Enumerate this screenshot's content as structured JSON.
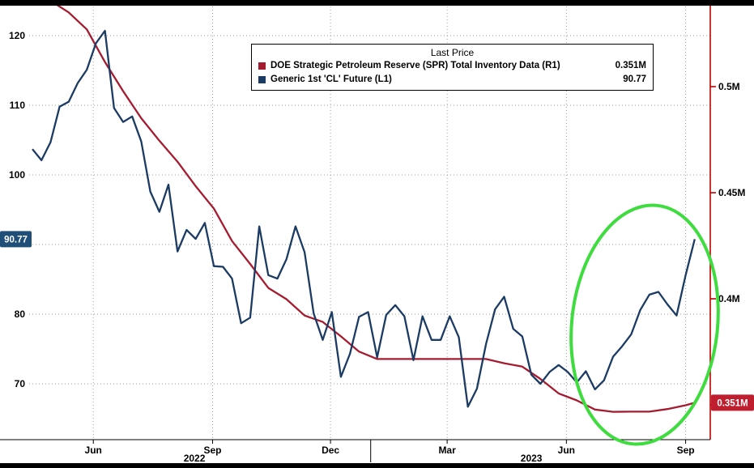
{
  "legend": {
    "title": "Last Price",
    "entries": [
      {
        "label": "DOE Strategic Petroleum Reserve (SPR) Total Inventory Data  (R1)",
        "value": "0.351M",
        "color": "#a51c30"
      },
      {
        "label": "Generic 1st 'CL' Future  (L1)",
        "value": "90.77",
        "color": "#1b3b63"
      }
    ]
  },
  "chart_data": {
    "type": "line",
    "title": "",
    "grid": "dotted",
    "x_axis": {
      "start": "2022-04-15",
      "end": "2023-09-20",
      "ticks": [
        {
          "date": "2022-06-01",
          "label": "Jun"
        },
        {
          "date": "2022-09-01",
          "label": "Sep"
        },
        {
          "date": "2022-12-01",
          "label": "Dec"
        },
        {
          "date": "2023-03-01",
          "label": "Mar"
        },
        {
          "date": "2023-06-01",
          "label": "Jun"
        },
        {
          "date": "2023-09-01",
          "label": "Sep"
        }
      ],
      "year_labels": [
        {
          "date": "2022-08-18",
          "label": "2022"
        },
        {
          "date": "2023-05-05",
          "label": "2023"
        }
      ],
      "year_divider_date": "2023-01-01"
    },
    "left_axis": {
      "ticks": [
        120,
        110,
        100,
        90,
        80,
        70
      ],
      "labeled": [
        120,
        110,
        100,
        80,
        70
      ],
      "badge": {
        "value": 90.77,
        "label": "90.77",
        "color": "#1f4e79"
      }
    },
    "right_axis": {
      "axis_color": "#c00000",
      "ticks": [
        {
          "value": 0.5,
          "label": "0.5M"
        },
        {
          "value": 0.45,
          "label": "0.45M"
        },
        {
          "value": 0.4,
          "label": "0.4M"
        },
        {
          "value": 0.35,
          "label": ""
        }
      ],
      "badge": {
        "value": 0.351,
        "label": "0.351M",
        "color": "#bf1e2e"
      }
    },
    "series": [
      {
        "name": "DOE Strategic Petroleum Reserve (SPR) Total Inventory Data (R1)",
        "axis": "right",
        "color": "#a51c30",
        "last": "0.351M",
        "points": [
          [
            "2022-04-15",
            0.546
          ],
          [
            "2022-04-29",
            0.5405
          ],
          [
            "2022-05-13",
            0.535
          ],
          [
            "2022-05-27",
            0.527
          ],
          [
            "2022-06-10",
            0.5116
          ],
          [
            "2022-06-24",
            0.4979
          ],
          [
            "2022-07-08",
            0.4851
          ],
          [
            "2022-07-22",
            0.4745
          ],
          [
            "2022-08-05",
            0.4646
          ],
          [
            "2022-08-19",
            0.4531
          ],
          [
            "2022-09-02",
            0.4425
          ],
          [
            "2022-09-16",
            0.4272
          ],
          [
            "2022-09-30",
            0.4164
          ],
          [
            "2022-10-14",
            0.4051
          ],
          [
            "2022-10-28",
            0.3998
          ],
          [
            "2022-11-11",
            0.3921
          ],
          [
            "2022-11-25",
            0.3891
          ],
          [
            "2022-12-09",
            0.3823
          ],
          [
            "2022-12-23",
            0.3751
          ],
          [
            "2023-01-06",
            0.3716
          ],
          [
            "2023-02-03",
            0.3716
          ],
          [
            "2023-03-03",
            0.3716
          ],
          [
            "2023-03-31",
            0.3716
          ],
          [
            "2023-04-14",
            0.3696
          ],
          [
            "2023-04-28",
            0.368
          ],
          [
            "2023-05-12",
            0.3622
          ],
          [
            "2023-05-26",
            0.3554
          ],
          [
            "2023-06-09",
            0.3521
          ],
          [
            "2023-06-23",
            0.3478
          ],
          [
            "2023-07-07",
            0.3467
          ],
          [
            "2023-07-21",
            0.3468
          ],
          [
            "2023-08-04",
            0.3468
          ],
          [
            "2023-08-18",
            0.348
          ],
          [
            "2023-09-01",
            0.3498
          ],
          [
            "2023-09-08",
            0.351
          ]
        ]
      },
      {
        "name": "Generic 1st 'CL' Future (L1)",
        "axis": "left",
        "color": "#1b3b63",
        "last": "90.77",
        "points": [
          [
            "2022-04-15",
            103.7
          ],
          [
            "2022-04-22",
            102.1
          ],
          [
            "2022-04-29",
            104.7
          ],
          [
            "2022-05-06",
            109.8
          ],
          [
            "2022-05-13",
            110.5
          ],
          [
            "2022-05-20",
            113.2
          ],
          [
            "2022-05-27",
            115.1
          ],
          [
            "2022-06-03",
            118.9
          ],
          [
            "2022-06-10",
            120.7
          ],
          [
            "2022-06-17",
            109.6
          ],
          [
            "2022-06-24",
            107.6
          ],
          [
            "2022-07-01",
            108.4
          ],
          [
            "2022-07-08",
            104.8
          ],
          [
            "2022-07-15",
            97.6
          ],
          [
            "2022-07-22",
            94.7
          ],
          [
            "2022-07-29",
            98.6
          ],
          [
            "2022-08-05",
            89.0
          ],
          [
            "2022-08-12",
            92.1
          ],
          [
            "2022-08-19",
            90.8
          ],
          [
            "2022-08-26",
            93.1
          ],
          [
            "2022-09-02",
            86.9
          ],
          [
            "2022-09-09",
            86.8
          ],
          [
            "2022-09-16",
            85.1
          ],
          [
            "2022-09-23",
            78.7
          ],
          [
            "2022-09-30",
            79.5
          ],
          [
            "2022-10-07",
            92.6
          ],
          [
            "2022-10-14",
            85.6
          ],
          [
            "2022-10-21",
            85.1
          ],
          [
            "2022-10-28",
            87.9
          ],
          [
            "2022-11-04",
            92.6
          ],
          [
            "2022-11-11",
            88.9
          ],
          [
            "2022-11-18",
            80.1
          ],
          [
            "2022-11-25",
            76.3
          ],
          [
            "2022-12-02",
            80.3
          ],
          [
            "2022-12-09",
            71.0
          ],
          [
            "2022-12-16",
            74.3
          ],
          [
            "2022-12-23",
            79.6
          ],
          [
            "2022-12-30",
            80.3
          ],
          [
            "2023-01-06",
            73.8
          ],
          [
            "2023-01-13",
            79.9
          ],
          [
            "2023-01-20",
            81.3
          ],
          [
            "2023-01-27",
            79.7
          ],
          [
            "2023-02-03",
            73.4
          ],
          [
            "2023-02-10",
            79.7
          ],
          [
            "2023-02-17",
            76.3
          ],
          [
            "2023-02-24",
            76.3
          ],
          [
            "2023-03-03",
            79.7
          ],
          [
            "2023-03-10",
            76.7
          ],
          [
            "2023-03-17",
            66.7
          ],
          [
            "2023-03-24",
            69.3
          ],
          [
            "2023-03-31",
            75.7
          ],
          [
            "2023-04-07",
            80.7
          ],
          [
            "2023-04-14",
            82.5
          ],
          [
            "2023-04-21",
            77.9
          ],
          [
            "2023-04-28",
            76.8
          ],
          [
            "2023-05-05",
            71.3
          ],
          [
            "2023-05-12",
            70.0
          ],
          [
            "2023-05-19",
            71.7
          ],
          [
            "2023-05-26",
            72.7
          ],
          [
            "2023-06-02",
            71.7
          ],
          [
            "2023-06-09",
            70.2
          ],
          [
            "2023-06-16",
            71.8
          ],
          [
            "2023-06-23",
            69.2
          ],
          [
            "2023-06-30",
            70.5
          ],
          [
            "2023-07-07",
            73.9
          ],
          [
            "2023-07-14",
            75.4
          ],
          [
            "2023-07-21",
            77.1
          ],
          [
            "2023-07-28",
            80.6
          ],
          [
            "2023-08-04",
            82.8
          ],
          [
            "2023-08-11",
            83.2
          ],
          [
            "2023-08-18",
            81.4
          ],
          [
            "2023-08-25",
            79.8
          ],
          [
            "2023-09-01",
            85.6
          ],
          [
            "2023-09-08",
            90.77
          ]
        ]
      }
    ],
    "annotation": {
      "shape": "ellipse",
      "color": "#3fdc3f"
    }
  }
}
